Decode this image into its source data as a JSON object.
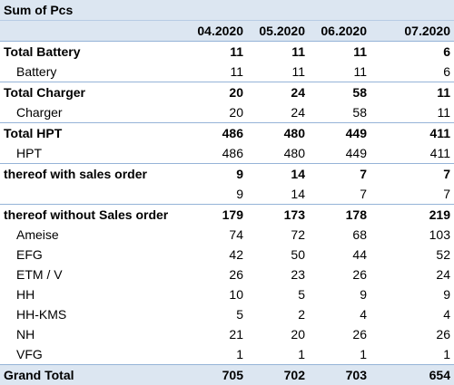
{
  "pivot": {
    "title": "Sum of Pcs",
    "columns": [
      "04.2020",
      "05.2020",
      "06.2020",
      "07.2020"
    ],
    "rows": [
      {
        "type": "total",
        "label": "Total Battery",
        "values": [
          "11",
          "11",
          "11",
          "6"
        ]
      },
      {
        "type": "detail",
        "label": "Battery",
        "values": [
          "11",
          "11",
          "11",
          "6"
        ]
      },
      {
        "type": "total",
        "label": "Total Charger",
        "values": [
          "20",
          "24",
          "58",
          "11"
        ]
      },
      {
        "type": "detail",
        "label": "Charger",
        "values": [
          "20",
          "24",
          "58",
          "11"
        ]
      },
      {
        "type": "total",
        "label": "Total HPT",
        "values": [
          "486",
          "480",
          "449",
          "411"
        ]
      },
      {
        "type": "detail",
        "label": "HPT",
        "values": [
          "486",
          "480",
          "449",
          "411"
        ]
      },
      {
        "type": "total",
        "label": "thereof with sales order",
        "values": [
          "9",
          "14",
          "7",
          "7"
        ]
      },
      {
        "type": "detail",
        "label": "",
        "values": [
          "9",
          "14",
          "7",
          "7"
        ]
      },
      {
        "type": "total",
        "label": "thereof without Sales order",
        "values": [
          "179",
          "173",
          "178",
          "219"
        ]
      },
      {
        "type": "detail",
        "label": "Ameise",
        "values": [
          "74",
          "72",
          "68",
          "103"
        ]
      },
      {
        "type": "detail",
        "label": "EFG",
        "values": [
          "42",
          "50",
          "44",
          "52"
        ]
      },
      {
        "type": "detail",
        "label": "ETM / V",
        "values": [
          "26",
          "23",
          "26",
          "24"
        ]
      },
      {
        "type": "detail",
        "label": "HH",
        "values": [
          "10",
          "5",
          "9",
          "9"
        ]
      },
      {
        "type": "detail",
        "label": "HH-KMS",
        "values": [
          "5",
          "2",
          "4",
          "4"
        ]
      },
      {
        "type": "detail",
        "label": "NH",
        "values": [
          "21",
          "20",
          "26",
          "26"
        ]
      },
      {
        "type": "detail",
        "label": "VFG",
        "values": [
          "1",
          "1",
          "1",
          "1"
        ]
      }
    ],
    "grand_total": {
      "label": "Grand Total",
      "values": [
        "705",
        "702",
        "703",
        "654"
      ]
    }
  }
}
